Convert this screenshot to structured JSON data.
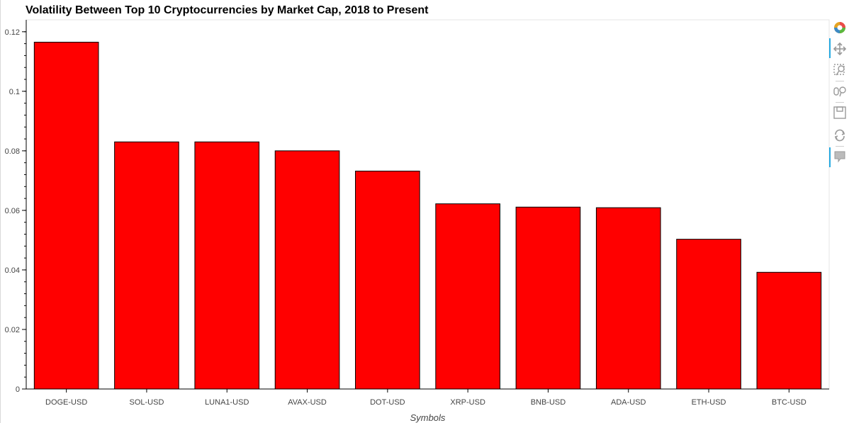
{
  "title": "Volatility Between Top 10 Cryptocurrencies by Market Cap, 2018 to Present",
  "chart_data": {
    "type": "bar",
    "title": "Volatility Between Top 10 Cryptocurrencies by Market Cap, 2018 to Present",
    "xlabel": "Symbols",
    "ylabel": "",
    "categories": [
      "DOGE-USD",
      "SOL-USD",
      "LUNA1-USD",
      "AVAX-USD",
      "DOT-USD",
      "XRP-USD",
      "BNB-USD",
      "ADA-USD",
      "ETH-USD",
      "BTC-USD"
    ],
    "values": [
      0.1165,
      0.083,
      0.083,
      0.08,
      0.0732,
      0.0622,
      0.0611,
      0.0609,
      0.0503,
      0.0392
    ],
    "ylim": [
      0,
      0.124
    ],
    "yticks": [
      0,
      0.02,
      0.04,
      0.06,
      0.08,
      0.1,
      0.12
    ],
    "ytick_labels": [
      "0",
      "0.02",
      "0.04",
      "0.06",
      "0.08",
      "0.1",
      "0.12"
    ],
    "bar_color": "#ff0000",
    "bar_edge_color": "#000000",
    "grid": false,
    "legend": "none"
  },
  "toolbar": {
    "tools": [
      "bokeh-logo-icon",
      "pan-icon",
      "box-zoom-icon",
      "wheel-zoom-icon",
      "save-icon",
      "reset-icon",
      "hover-icon"
    ]
  }
}
